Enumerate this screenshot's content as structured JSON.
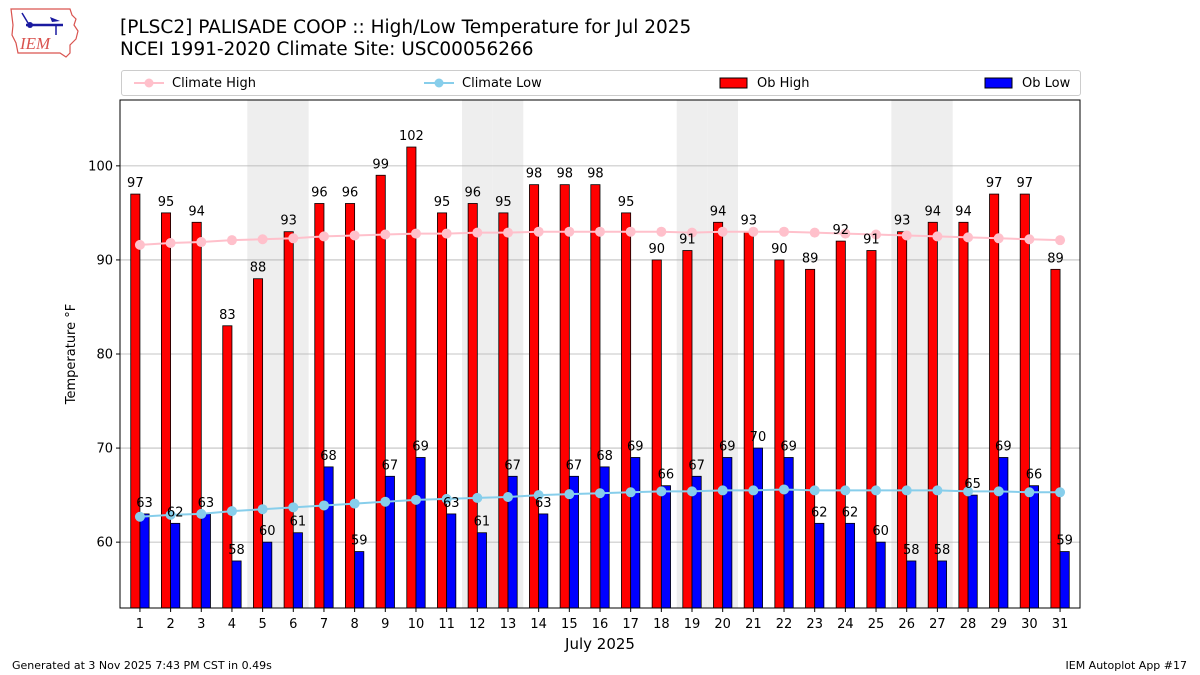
{
  "header": {
    "title_line1": "[PLSC2] PALISADE COOP :: High/Low Temperature for Jul 2025",
    "title_line2": "NCEI 1991-2020 Climate Site: USC00056266",
    "logo_text": "IEM"
  },
  "footer": {
    "generated": "Generated at 3 Nov 2025 7:43 PM CST in 0.49s",
    "app": "IEM Autoplot App #17"
  },
  "colors": {
    "ob_high": "#ff0000",
    "ob_low": "#0000ff",
    "climate_high": "#ffc0cb",
    "climate_low": "#87ceeb",
    "weekend_shade": "#eeeeee",
    "grid": "#b0b0b0"
  },
  "chart_data": {
    "type": "bar",
    "title": "[PLSC2] PALISADE COOP :: High/Low Temperature for Jul 2025",
    "subtitle": "NCEI 1991-2020 Climate Site: USC00056266",
    "xlabel": "July 2025",
    "ylabel": "Temperature °F",
    "ylim": [
      53,
      107
    ],
    "yticks": [
      60,
      70,
      80,
      90,
      100
    ],
    "grid": "horizontal",
    "legend_placement": "top",
    "categories": [
      "1",
      "2",
      "3",
      "4",
      "5",
      "6",
      "7",
      "8",
      "9",
      "10",
      "11",
      "12",
      "13",
      "14",
      "15",
      "16",
      "17",
      "18",
      "19",
      "20",
      "21",
      "22",
      "23",
      "24",
      "25",
      "26",
      "27",
      "28",
      "29",
      "30",
      "31"
    ],
    "shaded_days": [
      5,
      6,
      12,
      13,
      19,
      20,
      26,
      27
    ],
    "series": [
      {
        "name": "Ob High",
        "kind": "bar",
        "values": [
          97,
          95,
          94,
          83,
          88,
          93,
          96,
          96,
          99,
          102,
          95,
          96,
          95,
          98,
          98,
          98,
          95,
          90,
          91,
          94,
          93,
          90,
          89,
          92,
          91,
          93,
          94,
          94,
          97,
          97,
          89
        ]
      },
      {
        "name": "Ob Low",
        "kind": "bar",
        "values": [
          63,
          62,
          63,
          58,
          60,
          61,
          68,
          59,
          67,
          69,
          63,
          61,
          67,
          63,
          67,
          68,
          69,
          66,
          67,
          69,
          70,
          69,
          62,
          62,
          60,
          58,
          58,
          65,
          69,
          66,
          59
        ]
      },
      {
        "name": "Climate High",
        "kind": "line",
        "values": [
          91.6,
          91.8,
          91.9,
          92.1,
          92.2,
          92.3,
          92.5,
          92.6,
          92.7,
          92.8,
          92.8,
          92.9,
          92.9,
          93.0,
          93.0,
          93.0,
          93.0,
          93.0,
          92.9,
          93.0,
          93.0,
          93.0,
          92.9,
          92.8,
          92.7,
          92.6,
          92.5,
          92.4,
          92.3,
          92.2,
          92.1
        ]
      },
      {
        "name": "Climate Low",
        "kind": "line",
        "values": [
          62.7,
          62.9,
          63.0,
          63.3,
          63.5,
          63.7,
          63.9,
          64.1,
          64.3,
          64.5,
          64.6,
          64.7,
          64.8,
          65.0,
          65.1,
          65.2,
          65.3,
          65.4,
          65.4,
          65.5,
          65.5,
          65.6,
          65.5,
          65.5,
          65.5,
          65.5,
          65.5,
          65.4,
          65.4,
          65.3,
          65.3
        ]
      }
    ],
    "legend": [
      "Climate High",
      "Climate Low",
      "Ob High",
      "Ob Low"
    ]
  }
}
